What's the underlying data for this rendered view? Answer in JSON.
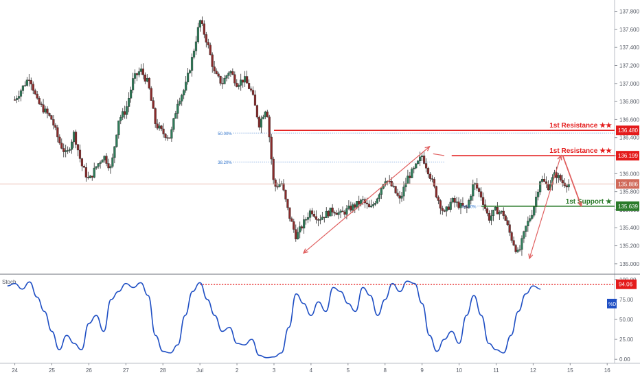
{
  "chart_data": [
    {
      "type": "candlestick",
      "title": "",
      "x_tick_labels": [
        "24",
        "25",
        "26",
        "27",
        "28",
        "Jul",
        "2",
        "3",
        "4",
        "5",
        "8",
        "9",
        "10",
        "11",
        "12",
        "15",
        "16"
      ],
      "y_tick_labels": [
        "135.000",
        "135.200",
        "135.400",
        "135.600",
        "135.800",
        "136.000",
        "136.200",
        "136.400",
        "136.600",
        "136.800",
        "137.000",
        "137.200",
        "137.400",
        "137.600",
        "137.800"
      ],
      "ylim": [
        134.9,
        137.85
      ],
      "price_path": [
        {
          "x": 24.0,
          "y": 136.82
        },
        {
          "x": 24.2,
          "y": 136.95
        },
        {
          "x": 24.4,
          "y": 137.08
        },
        {
          "x": 24.6,
          "y": 136.8
        },
        {
          "x": 24.8,
          "y": 136.7
        },
        {
          "x": 25.0,
          "y": 136.6
        },
        {
          "x": 25.2,
          "y": 136.35
        },
        {
          "x": 25.4,
          "y": 136.2
        },
        {
          "x": 25.6,
          "y": 136.45
        },
        {
          "x": 25.8,
          "y": 136.1
        },
        {
          "x": 26.0,
          "y": 135.92
        },
        {
          "x": 26.2,
          "y": 136.08
        },
        {
          "x": 26.4,
          "y": 136.2
        },
        {
          "x": 26.6,
          "y": 136.05
        },
        {
          "x": 26.8,
          "y": 136.6
        },
        {
          "x": 27.0,
          "y": 136.7
        },
        {
          "x": 27.2,
          "y": 137.05
        },
        {
          "x": 27.4,
          "y": 137.15
        },
        {
          "x": 27.6,
          "y": 137.0
        },
        {
          "x": 27.8,
          "y": 136.55
        },
        {
          "x": 28.0,
          "y": 136.45
        },
        {
          "x": 28.2,
          "y": 136.4
        },
        {
          "x": 28.4,
          "y": 136.8
        },
        {
          "x": 28.6,
          "y": 136.95
        },
        {
          "x": 28.8,
          "y": 137.3
        },
        {
          "x": 29.0,
          "y": 137.7
        },
        {
          "x": 29.2,
          "y": 137.45
        },
        {
          "x": 29.4,
          "y": 137.1
        },
        {
          "x": 29.6,
          "y": 137.0
        },
        {
          "x": 29.8,
          "y": 137.15
        },
        {
          "x": 30.0,
          "y": 137.0
        },
        {
          "x": 30.2,
          "y": 137.05
        },
        {
          "x": 30.4,
          "y": 136.9
        },
        {
          "x": 30.6,
          "y": 136.55
        },
        {
          "x": 30.8,
          "y": 136.75
        },
        {
          "x": 31.0,
          "y": 135.85
        },
        {
          "x": 31.2,
          "y": 135.9
        },
        {
          "x": 31.4,
          "y": 135.55
        },
        {
          "x": 31.6,
          "y": 135.3
        },
        {
          "x": 31.8,
          "y": 135.45
        },
        {
          "x": 32.0,
          "y": 135.6
        },
        {
          "x": 32.2,
          "y": 135.5
        },
        {
          "x": 32.4,
          "y": 135.55
        },
        {
          "x": 32.6,
          "y": 135.6
        },
        {
          "x": 32.8,
          "y": 135.55
        },
        {
          "x": 33.0,
          "y": 135.6
        },
        {
          "x": 33.2,
          "y": 135.65
        },
        {
          "x": 33.4,
          "y": 135.7
        },
        {
          "x": 33.6,
          "y": 135.6
        },
        {
          "x": 33.8,
          "y": 135.75
        },
        {
          "x": 34.0,
          "y": 135.95
        },
        {
          "x": 34.2,
          "y": 135.85
        },
        {
          "x": 34.4,
          "y": 135.7
        },
        {
          "x": 34.6,
          "y": 135.95
        },
        {
          "x": 34.8,
          "y": 136.05
        },
        {
          "x": 35.0,
          "y": 136.2
        },
        {
          "x": 35.2,
          "y": 136.0
        },
        {
          "x": 35.4,
          "y": 135.75
        },
        {
          "x": 35.6,
          "y": 135.55
        },
        {
          "x": 35.8,
          "y": 135.7
        },
        {
          "x": 36.0,
          "y": 135.65
        },
        {
          "x": 36.2,
          "y": 135.6
        },
        {
          "x": 36.4,
          "y": 135.9
        },
        {
          "x": 36.6,
          "y": 135.75
        },
        {
          "x": 36.8,
          "y": 135.5
        },
        {
          "x": 37.0,
          "y": 135.6
        },
        {
          "x": 37.2,
          "y": 135.55
        },
        {
          "x": 37.4,
          "y": 135.3
        },
        {
          "x": 37.6,
          "y": 135.1
        },
        {
          "x": 37.8,
          "y": 135.4
        },
        {
          "x": 38.0,
          "y": 135.6
        },
        {
          "x": 38.2,
          "y": 135.95
        },
        {
          "x": 38.4,
          "y": 135.85
        },
        {
          "x": 38.6,
          "y": 136.0
        },
        {
          "x": 38.8,
          "y": 135.9
        },
        {
          "x": 39.0,
          "y": 135.88
        }
      ],
      "annotations": [
        {
          "text": "1st Resistance ★★",
          "price": 136.48,
          "price_label": "136.480",
          "color": "#e41b1b"
        },
        {
          "text": "1st Resistance ★★",
          "price": 136.199,
          "price_label": "136.199",
          "color": "#e41b1b"
        },
        {
          "text": "1st Support ★",
          "price": 135.639,
          "price_label": "135.639",
          "color": "#2a7a2a"
        }
      ],
      "current_price": {
        "value": 135.886,
        "label": "135.886",
        "color": "#d06a5a"
      },
      "fibonacci": [
        {
          "label": "50.00%",
          "price": 136.45
        },
        {
          "label": "38.20%",
          "price": 136.13
        },
        {
          "label": "50.00%",
          "price": 135.64
        }
      ],
      "colors": {
        "up": "#2f7d5a",
        "down": "#8a2a2a",
        "resistance": "#e41b1b",
        "support": "#2a7a2a",
        "fib": "#2a6fc9",
        "projection": "#e06060"
      }
    },
    {
      "type": "line",
      "title": "Stoch",
      "y_tick_labels": [
        "0.00",
        "25.00",
        "50.00",
        "75.00",
        "100.00"
      ],
      "ylim": [
        -5,
        105
      ],
      "series": [
        {
          "name": "%D",
          "color": "#1f4fc4",
          "values": [
            {
              "x": 23.8,
              "y": 92
            },
            {
              "x": 24.0,
              "y": 95
            },
            {
              "x": 24.2,
              "y": 88
            },
            {
              "x": 24.4,
              "y": 97
            },
            {
              "x": 24.6,
              "y": 78
            },
            {
              "x": 24.8,
              "y": 60
            },
            {
              "x": 25.0,
              "y": 35
            },
            {
              "x": 25.2,
              "y": 12
            },
            {
              "x": 25.4,
              "y": 30
            },
            {
              "x": 25.6,
              "y": 20
            },
            {
              "x": 25.8,
              "y": 12
            },
            {
              "x": 26.0,
              "y": 45
            },
            {
              "x": 26.2,
              "y": 55
            },
            {
              "x": 26.4,
              "y": 35
            },
            {
              "x": 26.6,
              "y": 75
            },
            {
              "x": 26.8,
              "y": 85
            },
            {
              "x": 27.0,
              "y": 95
            },
            {
              "x": 27.2,
              "y": 90
            },
            {
              "x": 27.4,
              "y": 96
            },
            {
              "x": 27.6,
              "y": 80
            },
            {
              "x": 27.8,
              "y": 30
            },
            {
              "x": 28.0,
              "y": 10
            },
            {
              "x": 28.2,
              "y": 8
            },
            {
              "x": 28.4,
              "y": 18
            },
            {
              "x": 28.6,
              "y": 55
            },
            {
              "x": 28.8,
              "y": 85
            },
            {
              "x": 29.0,
              "y": 96
            },
            {
              "x": 29.2,
              "y": 75
            },
            {
              "x": 29.4,
              "y": 55
            },
            {
              "x": 29.6,
              "y": 35
            },
            {
              "x": 29.8,
              "y": 40
            },
            {
              "x": 30.0,
              "y": 20
            },
            {
              "x": 30.2,
              "y": 18
            },
            {
              "x": 30.4,
              "y": 25
            },
            {
              "x": 30.6,
              "y": 5
            },
            {
              "x": 30.8,
              "y": 2
            },
            {
              "x": 31.0,
              "y": 3
            },
            {
              "x": 31.2,
              "y": 8
            },
            {
              "x": 31.4,
              "y": 40
            },
            {
              "x": 31.6,
              "y": 82
            },
            {
              "x": 31.8,
              "y": 70
            },
            {
              "x": 32.0,
              "y": 55
            },
            {
              "x": 32.2,
              "y": 72
            },
            {
              "x": 32.4,
              "y": 60
            },
            {
              "x": 32.6,
              "y": 90
            },
            {
              "x": 32.8,
              "y": 85
            },
            {
              "x": 33.0,
              "y": 70
            },
            {
              "x": 33.2,
              "y": 60
            },
            {
              "x": 33.4,
              "y": 90
            },
            {
              "x": 33.6,
              "y": 80
            },
            {
              "x": 33.8,
              "y": 55
            },
            {
              "x": 34.0,
              "y": 75
            },
            {
              "x": 34.2,
              "y": 95
            },
            {
              "x": 34.4,
              "y": 85
            },
            {
              "x": 34.6,
              "y": 98
            },
            {
              "x": 34.8,
              "y": 95
            },
            {
              "x": 35.0,
              "y": 70
            },
            {
              "x": 35.2,
              "y": 30
            },
            {
              "x": 35.4,
              "y": 10
            },
            {
              "x": 35.6,
              "y": 25
            },
            {
              "x": 35.8,
              "y": 35
            },
            {
              "x": 36.0,
              "y": 20
            },
            {
              "x": 36.2,
              "y": 55
            },
            {
              "x": 36.4,
              "y": 80
            },
            {
              "x": 36.6,
              "y": 55
            },
            {
              "x": 36.8,
              "y": 20
            },
            {
              "x": 37.0,
              "y": 12
            },
            {
              "x": 37.2,
              "y": 8
            },
            {
              "x": 37.4,
              "y": 30
            },
            {
              "x": 37.6,
              "y": 60
            },
            {
              "x": 37.8,
              "y": 82
            },
            {
              "x": 38.0,
              "y": 92
            },
            {
              "x": 38.2,
              "y": 88
            }
          ]
        }
      ],
      "threshold": {
        "value": 94.06,
        "label": "94.06",
        "color": "#e41b1b"
      },
      "current_label": {
        "text": "%D",
        "color": "#1f4fc4"
      }
    }
  ]
}
